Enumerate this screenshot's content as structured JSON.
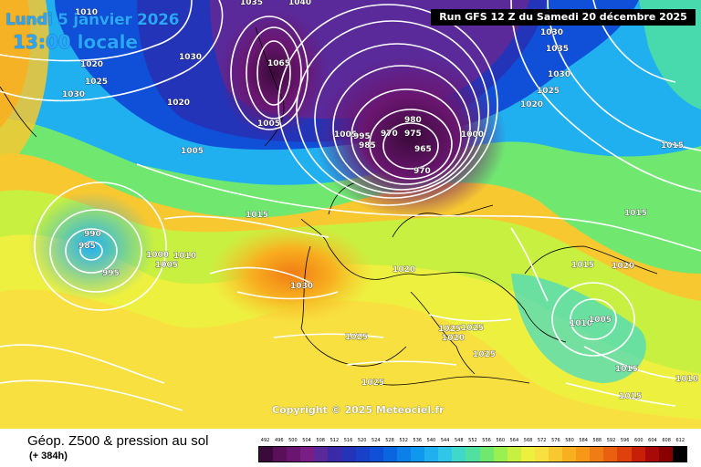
{
  "header": {
    "date": "Lundi 5 janvier 2026",
    "time": "13:00 locale",
    "run": "Run GFS 12 Z du Samedi 20 décembre 2025"
  },
  "copyright": "Copyright © 2025 Meteociel.fr",
  "legend": {
    "title": "Géop. Z500 & pression au sol",
    "subtitle": "(+ 384h)",
    "scale": [
      "492",
      "496",
      "500",
      "504",
      "508",
      "512",
      "516",
      "520",
      "524",
      "528",
      "532",
      "536",
      "540",
      "544",
      "548",
      "552",
      "556",
      "560",
      "564",
      "568",
      "572",
      "576",
      "580",
      "584",
      "588",
      "592",
      "596",
      "600",
      "604",
      "608",
      "612"
    ],
    "colors": [
      "#3a0a3a",
      "#5a0f5a",
      "#6a1670",
      "#7a1e86",
      "#5a2a9a",
      "#3a2aa8",
      "#2434b8",
      "#1840c8",
      "#1050d8",
      "#0a66e0",
      "#0a80e8",
      "#1098ee",
      "#20b0f0",
      "#30c6e8",
      "#40d8c8",
      "#50e0a0",
      "#70e870",
      "#9af050",
      "#c8f040",
      "#eef040",
      "#f8e040",
      "#f8c830",
      "#f8b020",
      "#f89818",
      "#f07c14",
      "#e86010",
      "#e0400c",
      "#c82008",
      "#a80a08",
      "#880000",
      "#000000"
    ]
  },
  "isobars": [
    "1010",
    "1035",
    "1040",
    "1030",
    "1020",
    "1025",
    "1030",
    "1020",
    "1065",
    "1005",
    "1005",
    "1005",
    "1015",
    "1030",
    "1025",
    "1025",
    "1020",
    "1035",
    "1030",
    "1015",
    "1015",
    "1020",
    "1015",
    "1020",
    "1030",
    "1025",
    "1025",
    "1025",
    "1010",
    "1005",
    "1015",
    "1015",
    "1010",
    "980",
    "975",
    "970",
    "965",
    "1000",
    "995",
    "990",
    "985",
    "995",
    "1000",
    "1010",
    "1005",
    "985",
    "970",
    "1020",
    "1025"
  ]
}
